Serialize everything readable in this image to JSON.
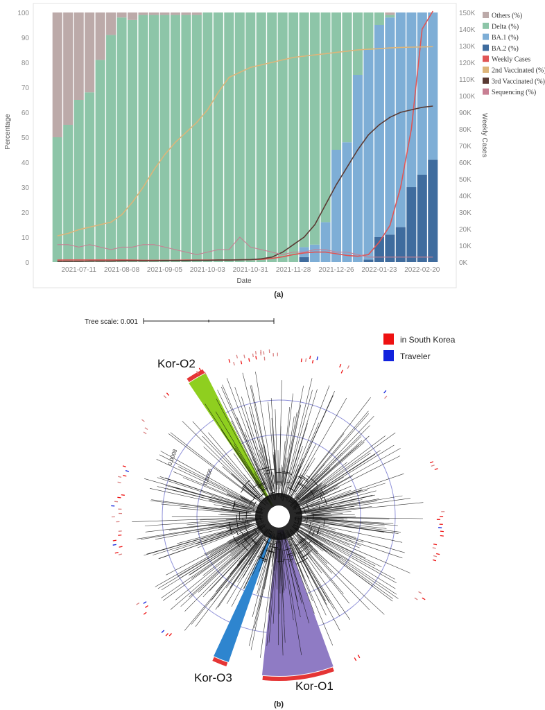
{
  "chart_data": [
    {
      "type": "bar",
      "stacked": true,
      "categories": [
        "2021-06-27",
        "2021-07-04",
        "2021-07-11",
        "2021-07-18",
        "2021-07-25",
        "2021-08-01",
        "2021-08-08",
        "2021-08-15",
        "2021-08-22",
        "2021-08-29",
        "2021-09-05",
        "2021-09-12",
        "2021-09-19",
        "2021-09-26",
        "2021-10-03",
        "2021-10-10",
        "2021-10-17",
        "2021-10-24",
        "2021-10-31",
        "2021-11-07",
        "2021-11-14",
        "2021-11-21",
        "2021-11-28",
        "2021-12-05",
        "2021-12-12",
        "2021-12-19",
        "2021-12-26",
        "2022-01-02",
        "2022-01-09",
        "2022-01-16",
        "2022-01-23",
        "2022-01-30",
        "2022-02-06",
        "2022-02-13",
        "2022-02-20",
        "2022-02-27"
      ],
      "x_ticks": [
        "2021-07-11",
        "2021-08-08",
        "2021-09-05",
        "2021-10-03",
        "2021-10-31",
        "2021-11-28",
        "2021-12-26",
        "2022-01-23",
        "2022-02-20"
      ],
      "xlabel": "Date",
      "ylabel": "Percentage",
      "ylabel_right": "Weekly Cases",
      "ylim": [
        0,
        100
      ],
      "ylim_right": [
        0,
        150000
      ],
      "y_ticks": [
        "0",
        "10",
        "20",
        "30",
        "40",
        "50",
        "60",
        "70",
        "80",
        "90",
        "100"
      ],
      "y_ticks_right": [
        "0K",
        "10K",
        "20K",
        "30K",
        "40K",
        "50K",
        "60K",
        "70K",
        "80K",
        "90K",
        "100K",
        "110K",
        "120K",
        "130K",
        "140K",
        "150K"
      ],
      "series": [
        {
          "name": "BA.2 (%)",
          "color": "#3f6c9e",
          "values": [
            0,
            0,
            0,
            0,
            0,
            0,
            0,
            0,
            0,
            0,
            0,
            0,
            0,
            0,
            0,
            0,
            0,
            0,
            0,
            0,
            0,
            0,
            0,
            2,
            0,
            0,
            0,
            0,
            0,
            1,
            10,
            11,
            14,
            30,
            35,
            41
          ]
        },
        {
          "name": "BA.1 (%)",
          "color": "#7eaed6",
          "values": [
            0,
            0,
            0,
            0,
            0,
            0,
            0,
            0,
            0,
            0,
            0,
            0,
            0,
            0,
            0,
            0,
            0,
            0,
            0,
            0,
            0,
            0,
            0,
            4,
            7,
            16,
            45,
            48,
            75,
            84,
            85,
            87,
            86,
            70,
            65,
            59
          ]
        },
        {
          "name": "Delta (%)",
          "color": "#8dc5a8",
          "values": [
            50,
            55,
            65,
            68,
            81,
            91,
            98,
            97,
            99,
            99,
            99,
            99,
            99,
            99,
            100,
            100,
            100,
            100,
            100,
            100,
            100,
            100,
            100,
            94,
            93,
            84,
            55,
            52,
            25,
            15,
            5,
            1,
            0,
            0,
            0,
            0
          ]
        },
        {
          "name": "Others (%)",
          "color": "#bcaaa9",
          "values": [
            50,
            45,
            35,
            32,
            19,
            9,
            2,
            3,
            1,
            1,
            1,
            1,
            1,
            1,
            0,
            0,
            0,
            0,
            0,
            0,
            0,
            0,
            0,
            0,
            0,
            0,
            0,
            0,
            0,
            0,
            0,
            1,
            0,
            0,
            0,
            0
          ]
        }
      ],
      "lines": [
        {
          "name": "Weekly Cases",
          "color": "#e05555",
          "axis": "right",
          "values": [
            1200,
            1300,
            1300,
            1300,
            1300,
            1300,
            1300,
            1200,
            1100,
            1100,
            1100,
            1100,
            1200,
            1200,
            1200,
            1300,
            1300,
            1400,
            1500,
            1600,
            2200,
            3200,
            4500,
            5500,
            6000,
            6000,
            5000,
            4000,
            3500,
            4500,
            12000,
            22000,
            45000,
            80000,
            140000,
            152000
          ]
        },
        {
          "name": "2nd Vaccinated (%)",
          "color": "#ddb57a",
          "axis": "left",
          "values": [
            10.5,
            11.5,
            13,
            14,
            15,
            16,
            19,
            24,
            30,
            37,
            43,
            48,
            52,
            56,
            61,
            68,
            74,
            76,
            78,
            79,
            80,
            81,
            82,
            82.5,
            83,
            83.5,
            84,
            84.5,
            85,
            85.3,
            85.5,
            85.8,
            86,
            86.1,
            86.2,
            86.3
          ]
        },
        {
          "name": "3rd Vaccinated (%)",
          "color": "#5a3a33",
          "axis": "left",
          "values": [
            0.3,
            0.3,
            0.3,
            0.4,
            0.4,
            0.4,
            0.5,
            0.5,
            0.5,
            0.5,
            0.6,
            0.6,
            0.6,
            0.7,
            0.7,
            0.8,
            0.8,
            0.9,
            1.0,
            1.3,
            2.0,
            4,
            7,
            10,
            15,
            23,
            31,
            38,
            45,
            51,
            55,
            58,
            60,
            61,
            62,
            62.5
          ]
        },
        {
          "name": "Sequencing (%)",
          "color": "#c87f93",
          "axis": "left",
          "values": [
            7,
            7,
            6,
            7,
            6,
            5,
            6,
            6,
            7,
            7,
            6,
            5,
            4,
            3,
            4,
            5,
            5,
            10,
            6,
            5,
            4,
            3,
            4,
            4,
            5,
            5,
            4,
            4,
            3,
            2,
            2,
            2,
            2,
            2,
            2,
            2
          ]
        }
      ],
      "legend_position": "right",
      "legend": [
        "Others (%)",
        "Delta (%)",
        "BA.1 (%)",
        "BA.2 (%)",
        "Weekly Cases",
        "2nd Vaccinated (%)",
        "3rd Vaccinated (%)",
        "Sequencing (%)"
      ],
      "caption": "(a)"
    },
    {
      "type": "other",
      "subtype": "circular-phylogenetic-tree",
      "tree_scale_label": "Tree scale: 0.001",
      "ring_labels": [
        "0.0008",
        "0.0006"
      ],
      "clades": [
        {
          "name": "Kor-O1",
          "color": "#8f7bc4"
        },
        {
          "name": "Kor-O2",
          "color": "#8fcf1f"
        },
        {
          "name": "Kor-O3",
          "color": "#2e85cf"
        }
      ],
      "legend": [
        {
          "label": "in South Korea",
          "color": "#ee1111"
        },
        {
          "label": "Traveler",
          "color": "#1122dd"
        }
      ],
      "caption": "(b)"
    }
  ]
}
